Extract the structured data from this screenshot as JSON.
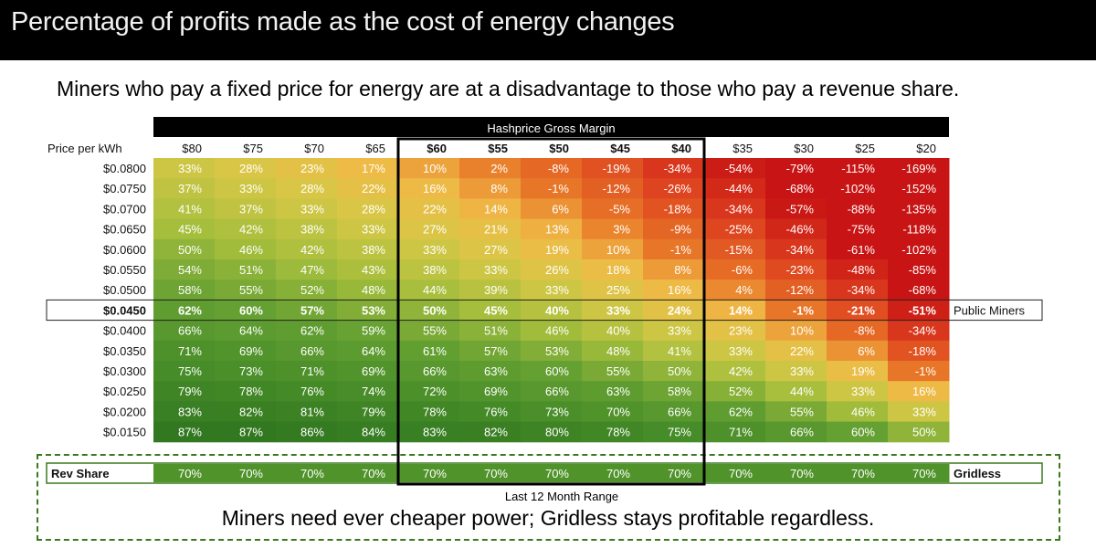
{
  "title": "Percentage of profits made as the cost of energy changes",
  "subtitle": "Miners who pay a fixed price for energy are at a disadvantage to those who pay a revenue share.",
  "bottom_text": "Miners need ever cheaper power; Gridless stays profitable regardless.",
  "chart_data": {
    "type": "heatmap",
    "header_title": "Hashprice Gross Margin",
    "row_header": "Price per kWh",
    "columns": [
      "$80",
      "$75",
      "$70",
      "$65",
      "$60",
      "$55",
      "$50",
      "$45",
      "$40",
      "$35",
      "$30",
      "$25",
      "$20"
    ],
    "rows": [
      "$0.0800",
      "$0.0750",
      "$0.0700",
      "$0.0650",
      "$0.0600",
      "$0.0550",
      "$0.0500",
      "$0.0450",
      "$0.0400",
      "$0.0350",
      "$0.0300",
      "$0.0250",
      "$0.0200",
      "$0.0150"
    ],
    "values": [
      [
        33,
        28,
        23,
        17,
        10,
        2,
        -8,
        -19,
        -34,
        -54,
        -79,
        -115,
        -169
      ],
      [
        37,
        33,
        28,
        22,
        16,
        8,
        -1,
        -12,
        -26,
        -44,
        -68,
        -102,
        -152
      ],
      [
        41,
        37,
        33,
        28,
        22,
        14,
        6,
        -5,
        -18,
        -34,
        -57,
        -88,
        -135
      ],
      [
        45,
        42,
        38,
        33,
        27,
        21,
        13,
        3,
        -9,
        -25,
        -46,
        -75,
        -118
      ],
      [
        50,
        46,
        42,
        38,
        33,
        27,
        19,
        10,
        -1,
        -15,
        -34,
        -61,
        -102
      ],
      [
        54,
        51,
        47,
        43,
        38,
        33,
        26,
        18,
        8,
        -6,
        -23,
        -48,
        -85
      ],
      [
        58,
        55,
        52,
        48,
        44,
        39,
        33,
        25,
        16,
        4,
        -12,
        -34,
        -68
      ],
      [
        62,
        60,
        57,
        53,
        50,
        45,
        40,
        33,
        24,
        14,
        -1,
        -21,
        -51
      ],
      [
        66,
        64,
        62,
        59,
        55,
        51,
        46,
        40,
        33,
        23,
        10,
        -8,
        -34
      ],
      [
        71,
        69,
        66,
        64,
        61,
        57,
        53,
        48,
        41,
        33,
        22,
        6,
        -18
      ],
      [
        75,
        73,
        71,
        69,
        66,
        63,
        60,
        55,
        50,
        42,
        33,
        19,
        -1
      ],
      [
        79,
        78,
        76,
        74,
        72,
        69,
        66,
        63,
        58,
        52,
        44,
        33,
        16
      ],
      [
        83,
        82,
        81,
        79,
        78,
        76,
        73,
        70,
        66,
        62,
        55,
        46,
        33
      ],
      [
        87,
        87,
        86,
        84,
        83,
        82,
        80,
        78,
        75,
        71,
        66,
        60,
        50
      ]
    ],
    "highlight_row": "$0.0450",
    "highlight_label": "Public Miners",
    "rev_share": {
      "label": "Rev Share",
      "values": [
        70,
        70,
        70,
        70,
        70,
        70,
        70,
        70,
        70,
        70,
        70,
        70,
        70
      ],
      "tag": "Gridless"
    },
    "range_label": "Last 12 Month Range",
    "range_columns": [
      "$60",
      "$40"
    ]
  }
}
